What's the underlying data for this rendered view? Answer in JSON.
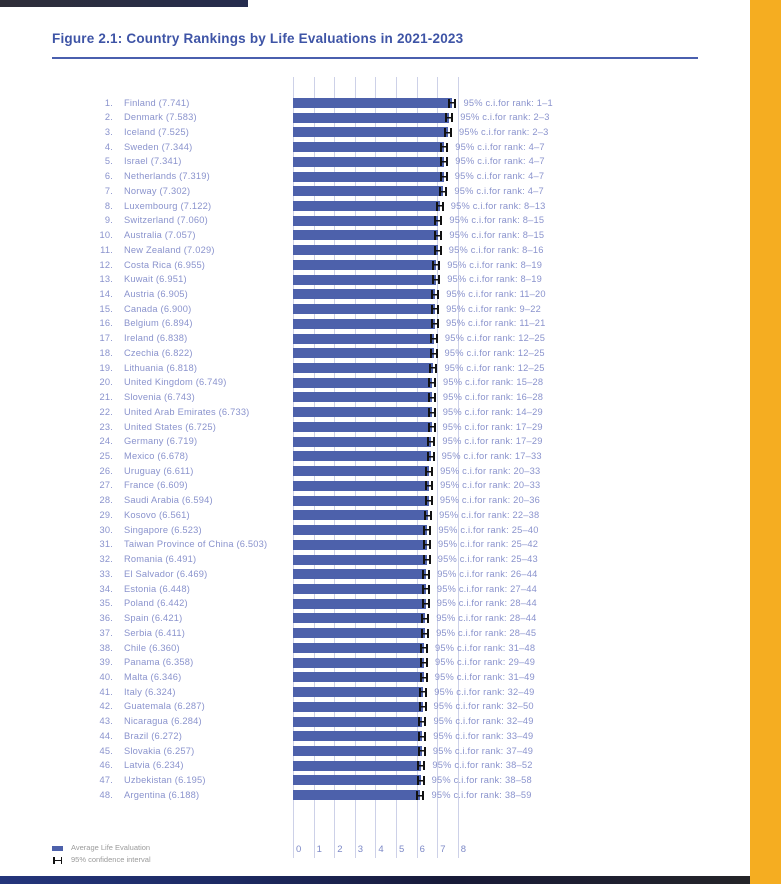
{
  "figure": {
    "title": "Figure 2.1: Country Rankings by Life Evaluations in 2021-2023"
  },
  "legend": {
    "bar_label": "Average Life Evaluation",
    "ci_label": "95% confidence interval"
  },
  "colors": {
    "bar_blue": "#4d61ab",
    "title_blue": "#3e54a6",
    "row_label_blue": "#8a93cd",
    "gridline": "#cdd1e8",
    "accent_orange": "#f5ad21",
    "footer_navy": "#1d2a63",
    "error_bar": "#111111"
  },
  "chart_data": {
    "type": "bar",
    "orientation": "horizontal",
    "title": "Figure 2.1: Country Rankings by Life Evaluations in 2021-2023",
    "xlim": [
      0,
      8
    ],
    "x_ticks": [
      "0",
      "1",
      "2",
      "3",
      "4",
      "5",
      "6",
      "7",
      "8"
    ],
    "grid": true,
    "legend_position": "bottom-left",
    "ci_prefix": "95% c.i.for rank: ",
    "rows": [
      {
        "rank": 1,
        "country": "Finland",
        "score": 7.741,
        "ci_rank": "1–1"
      },
      {
        "rank": 2,
        "country": "Denmark",
        "score": 7.583,
        "ci_rank": "2–3"
      },
      {
        "rank": 3,
        "country": "Iceland",
        "score": 7.525,
        "ci_rank": "2–3"
      },
      {
        "rank": 4,
        "country": "Sweden",
        "score": 7.344,
        "ci_rank": "4–7"
      },
      {
        "rank": 5,
        "country": "Israel",
        "score": 7.341,
        "ci_rank": "4–7"
      },
      {
        "rank": 6,
        "country": "Netherlands",
        "score": 7.319,
        "ci_rank": "4–7"
      },
      {
        "rank": 7,
        "country": "Norway",
        "score": 7.302,
        "ci_rank": "4–7"
      },
      {
        "rank": 8,
        "country": "Luxembourg",
        "score": 7.122,
        "ci_rank": "8–13"
      },
      {
        "rank": 9,
        "country": "Switzerland",
        "score": 7.06,
        "ci_rank": "8–15"
      },
      {
        "rank": 10,
        "country": "Australia",
        "score": 7.057,
        "ci_rank": "8–15"
      },
      {
        "rank": 11,
        "country": "New Zealand",
        "score": 7.029,
        "ci_rank": "8–16"
      },
      {
        "rank": 12,
        "country": "Costa Rica",
        "score": 6.955,
        "ci_rank": "8–19"
      },
      {
        "rank": 13,
        "country": "Kuwait",
        "score": 6.951,
        "ci_rank": "8–19"
      },
      {
        "rank": 14,
        "country": "Austria",
        "score": 6.905,
        "ci_rank": "11–20"
      },
      {
        "rank": 15,
        "country": "Canada",
        "score": 6.9,
        "ci_rank": "9–22"
      },
      {
        "rank": 16,
        "country": "Belgium",
        "score": 6.894,
        "ci_rank": "11–21"
      },
      {
        "rank": 17,
        "country": "Ireland",
        "score": 6.838,
        "ci_rank": "12–25"
      },
      {
        "rank": 18,
        "country": "Czechia",
        "score": 6.822,
        "ci_rank": "12–25"
      },
      {
        "rank": 19,
        "country": "Lithuania",
        "score": 6.818,
        "ci_rank": "12–25"
      },
      {
        "rank": 20,
        "country": "United Kingdom",
        "score": 6.749,
        "ci_rank": "15–28"
      },
      {
        "rank": 21,
        "country": "Slovenia",
        "score": 6.743,
        "ci_rank": "16–28"
      },
      {
        "rank": 22,
        "country": "United Arab Emirates",
        "score": 6.733,
        "ci_rank": "14–29"
      },
      {
        "rank": 23,
        "country": "United States",
        "score": 6.725,
        "ci_rank": "17–29"
      },
      {
        "rank": 24,
        "country": "Germany",
        "score": 6.719,
        "ci_rank": "17–29"
      },
      {
        "rank": 25,
        "country": "Mexico",
        "score": 6.678,
        "ci_rank": "17–33"
      },
      {
        "rank": 26,
        "country": "Uruguay",
        "score": 6.611,
        "ci_rank": "20–33"
      },
      {
        "rank": 27,
        "country": "France",
        "score": 6.609,
        "ci_rank": "20–33"
      },
      {
        "rank": 28,
        "country": "Saudi Arabia",
        "score": 6.594,
        "ci_rank": "20–36"
      },
      {
        "rank": 29,
        "country": "Kosovo",
        "score": 6.561,
        "ci_rank": "22–38"
      },
      {
        "rank": 30,
        "country": "Singapore",
        "score": 6.523,
        "ci_rank": "25–40"
      },
      {
        "rank": 31,
        "country": "Taiwan Province of China",
        "score": 6.503,
        "ci_rank": "25–42"
      },
      {
        "rank": 32,
        "country": "Romania",
        "score": 6.491,
        "ci_rank": "25–43"
      },
      {
        "rank": 33,
        "country": "El Salvador",
        "score": 6.469,
        "ci_rank": "26–44"
      },
      {
        "rank": 34,
        "country": "Estonia",
        "score": 6.448,
        "ci_rank": "27–44"
      },
      {
        "rank": 35,
        "country": "Poland",
        "score": 6.442,
        "ci_rank": "28–44"
      },
      {
        "rank": 36,
        "country": "Spain",
        "score": 6.421,
        "ci_rank": "28–44"
      },
      {
        "rank": 37,
        "country": "Serbia",
        "score": 6.411,
        "ci_rank": "28–45"
      },
      {
        "rank": 38,
        "country": "Chile",
        "score": 6.36,
        "ci_rank": "31–48"
      },
      {
        "rank": 39,
        "country": "Panama",
        "score": 6.358,
        "ci_rank": "29–49"
      },
      {
        "rank": 40,
        "country": "Malta",
        "score": 6.346,
        "ci_rank": "31–49"
      },
      {
        "rank": 41,
        "country": "Italy",
        "score": 6.324,
        "ci_rank": "32–49"
      },
      {
        "rank": 42,
        "country": "Guatemala",
        "score": 6.287,
        "ci_rank": "32–50"
      },
      {
        "rank": 43,
        "country": "Nicaragua",
        "score": 6.284,
        "ci_rank": "32–49"
      },
      {
        "rank": 44,
        "country": "Brazil",
        "score": 6.272,
        "ci_rank": "33–49"
      },
      {
        "rank": 45,
        "country": "Slovakia",
        "score": 6.257,
        "ci_rank": "37–49"
      },
      {
        "rank": 46,
        "country": "Latvia",
        "score": 6.234,
        "ci_rank": "38–52"
      },
      {
        "rank": 47,
        "country": "Uzbekistan",
        "score": 6.195,
        "ci_rank": "38–58"
      },
      {
        "rank": 48,
        "country": "Argentina",
        "score": 6.188,
        "ci_rank": "38–59"
      }
    ]
  }
}
